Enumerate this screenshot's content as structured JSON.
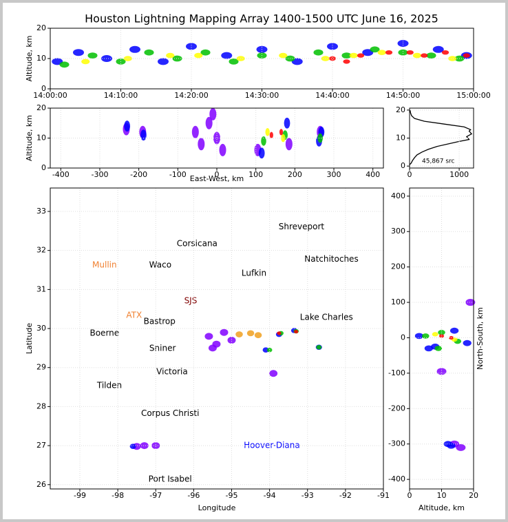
{
  "chart_data": [
    {
      "type": "scatter",
      "title": "Houston Lightning Mapping Array 1400-1500 UTC June 16, 2025",
      "ylabel": "Altitude, km",
      "xlim": [
        0,
        60
      ],
      "ylim": [
        0,
        20
      ],
      "xticks": [
        {
          "value": 0,
          "label": "14:00:00"
        },
        {
          "value": 10,
          "label": "14:10:00"
        },
        {
          "value": 20,
          "label": "14:20:00"
        },
        {
          "value": 30,
          "label": "14:30:00"
        },
        {
          "value": 40,
          "label": "14:40:00"
        },
        {
          "value": 50,
          "label": "14:50:00"
        },
        {
          "value": 60,
          "label": "15:00:00"
        }
      ],
      "yticks": [
        0,
        10,
        20
      ],
      "grid": true,
      "series": [
        {
          "color": "#0000ff",
          "x": [
            1,
            4,
            8,
            12,
            16,
            20,
            25,
            30,
            35,
            40,
            45,
            50,
            55,
            59
          ],
          "y": [
            9,
            12,
            10,
            13,
            9,
            14,
            11,
            13,
            9,
            14,
            12,
            15,
            13,
            11
          ]
        },
        {
          "color": "#00c000",
          "x": [
            2,
            6,
            10,
            14,
            18,
            22,
            26,
            30,
            34,
            38,
            42,
            46,
            50,
            54,
            58
          ],
          "y": [
            8,
            11,
            9,
            12,
            10,
            12,
            9,
            11,
            10,
            12,
            11,
            13,
            12,
            11,
            10
          ]
        },
        {
          "color": "#ffff00",
          "x": [
            5,
            11,
            17,
            21,
            27,
            33,
            39,
            43,
            47,
            52,
            57
          ],
          "y": [
            9,
            10,
            11,
            11,
            10,
            11,
            10,
            11,
            12,
            11,
            10
          ]
        },
        {
          "color": "#ff0000",
          "x": [
            40,
            42,
            44,
            48,
            51,
            53,
            56,
            59
          ],
          "y": [
            10,
            9,
            11,
            12,
            12,
            11,
            12,
            11
          ]
        }
      ]
    },
    {
      "type": "scatter",
      "xlabel": "East-West, km",
      "ylabel": "Altitude, km",
      "xlim": [
        -427,
        427
      ],
      "ylim": [
        0,
        20
      ],
      "xticks": [
        -400,
        -300,
        -200,
        -100,
        0,
        100,
        200,
        300,
        400
      ],
      "yticks": [
        0,
        10,
        20
      ],
      "grid": true,
      "series": [
        {
          "color": "#8000ff",
          "x": [
            -232,
            -190,
            -40,
            -20,
            0,
            -55,
            -10,
            15,
            105,
            185,
            265
          ],
          "y": [
            13,
            12,
            8,
            15,
            10,
            12,
            18,
            6,
            6,
            8,
            12
          ]
        },
        {
          "color": "#0000ff",
          "x": [
            -230,
            -188,
            115,
            180,
            262,
            268
          ],
          "y": [
            14,
            11,
            5,
            15,
            9,
            12
          ]
        },
        {
          "color": "#00c000",
          "x": [
            120,
            175,
            265
          ],
          "y": [
            9,
            11,
            10
          ]
        },
        {
          "color": "#ffff00",
          "x": [
            130,
            170
          ],
          "y": [
            12,
            10
          ]
        },
        {
          "color": "#ff0000",
          "x": [
            140,
            165
          ],
          "y": [
            11,
            12
          ]
        },
        {
          "color": "#ffffff",
          "x": [
            155
          ],
          "y": [
            11
          ]
        }
      ]
    },
    {
      "type": "line",
      "annotation": "45,867 src",
      "xlim": [
        0,
        1290
      ],
      "ylim": [
        -0.7,
        20.7
      ],
      "xticks": [
        0,
        1000
      ],
      "yticks": [
        0,
        10,
        20
      ],
      "grid": true,
      "color": "#000000",
      "x": [
        0,
        30,
        60,
        100,
        150,
        250,
        380,
        550,
        800,
        1000,
        1200,
        1150,
        1250,
        1200,
        1230,
        1100,
        700,
        300,
        100,
        40,
        20,
        10
      ],
      "values": [
        0.5,
        1,
        2,
        3,
        4,
        5,
        6,
        7,
        8,
        8.8,
        9.5,
        10.5,
        11.5,
        12.5,
        13,
        14,
        15,
        16,
        17,
        18,
        19,
        20
      ]
    },
    {
      "type": "map",
      "xlabel": "Longitude",
      "ylabel": "Latitude",
      "xlim": [
        -99.78,
        -91
      ],
      "ylim": [
        25.89,
        33.6
      ],
      "xticks": [
        -99,
        -98,
        -97,
        -96,
        -95,
        -94,
        -93,
        -92,
        -91
      ],
      "yticks": [
        26,
        27,
        28,
        29,
        30,
        31,
        32,
        33
      ],
      "grid": true,
      "places": [
        {
          "label": "Shreveport",
          "lon": -93.16,
          "lat": 32.6,
          "color": "#000000"
        },
        {
          "label": "Corsicana",
          "lon": -95.91,
          "lat": 32.17,
          "color": "#000000"
        },
        {
          "label": "Mullin",
          "lon": -98.35,
          "lat": 31.62,
          "color": "#f08030"
        },
        {
          "label": "Waco",
          "lon": -96.88,
          "lat": 31.62,
          "color": "#000000"
        },
        {
          "label": "Lufkin",
          "lon": -94.41,
          "lat": 31.41,
          "color": "#000000"
        },
        {
          "label": "Natchitoches",
          "lon": -92.37,
          "lat": 31.77,
          "color": "#000000"
        },
        {
          "label": "SJS",
          "lon": -96.08,
          "lat": 30.71,
          "color": "#800000"
        },
        {
          "label": "ATX",
          "lon": -97.57,
          "lat": 30.34,
          "color": "#f08030"
        },
        {
          "label": "Bastrop",
          "lon": -96.9,
          "lat": 30.18,
          "color": "#000000"
        },
        {
          "label": "Lake Charles",
          "lon": -92.5,
          "lat": 30.28,
          "color": "#000000"
        },
        {
          "label": "Boerne",
          "lon": -98.35,
          "lat": 29.88,
          "color": "#000000"
        },
        {
          "label": "Sniner",
          "lon": -96.82,
          "lat": 29.49,
          "color": "#000000"
        },
        {
          "label": "Victoria",
          "lon": -96.57,
          "lat": 28.89,
          "color": "#000000"
        },
        {
          "label": "Tilden",
          "lon": -98.22,
          "lat": 28.54,
          "color": "#000000"
        },
        {
          "label": "Corpus Christi",
          "lon": -96.62,
          "lat": 27.82,
          "color": "#000000"
        },
        {
          "label": "Hoover-Diana",
          "lon": -93.94,
          "lat": 27.0,
          "color": "#0000ff"
        },
        {
          "label": "Port Isabel",
          "lon": -96.62,
          "lat": 26.14,
          "color": "#000000"
        }
      ],
      "series": [
        {
          "color": "#8000ff",
          "x": [
            -95.6,
            -95.4,
            -95.2,
            -95.0,
            -95.5,
            -93.9,
            -97.5,
            -97.3,
            -97.0
          ],
          "y": [
            29.8,
            29.6,
            29.9,
            29.7,
            29.5,
            28.85,
            26.98,
            27.0,
            27.0
          ]
        },
        {
          "color": "#f0a020",
          "x": [
            -94.8,
            -94.5,
            -94.3
          ],
          "y": [
            29.85,
            29.88,
            29.83
          ]
        },
        {
          "color": "#0000ff",
          "x": [
            -93.75,
            -93.35,
            -94.1,
            -92.7,
            -97.6
          ],
          "y": [
            29.85,
            29.95,
            29.45,
            29.52,
            26.98
          ]
        },
        {
          "color": "#00c000",
          "x": [
            -93.7,
            -93.3,
            -94.0,
            -92.7
          ],
          "y": [
            29.88,
            29.93,
            29.45,
            29.52
          ]
        },
        {
          "color": "#ff0000",
          "x": [
            -93.75,
            -93.3
          ],
          "y": [
            29.88,
            29.92
          ]
        }
      ]
    },
    {
      "type": "scatter",
      "xlabel": "Altitude, km",
      "ylabel": "North-South, km",
      "xlim": [
        0,
        20
      ],
      "ylim": [
        -427,
        423
      ],
      "xticks": [
        0,
        10,
        20
      ],
      "yticks": [
        -400,
        -300,
        -200,
        -100,
        0,
        100,
        200,
        300,
        400
      ],
      "grid": true,
      "series": [
        {
          "color": "#8000ff",
          "x": [
            10,
            14,
            16,
            19
          ],
          "y": [
            -95,
            -300,
            -310,
            100
          ]
        },
        {
          "color": "#0000ff",
          "x": [
            3,
            8,
            14,
            18,
            6,
            12,
            13
          ],
          "y": [
            5,
            -25,
            20,
            -15,
            -30,
            -300,
            -305
          ]
        },
        {
          "color": "#00c000",
          "x": [
            5,
            10,
            15,
            9
          ],
          "y": [
            5,
            15,
            -10,
            -30
          ]
        },
        {
          "color": "#ffff00",
          "x": [
            8,
            14
          ],
          "y": [
            10,
            -5
          ]
        },
        {
          "color": "#ff0000",
          "x": [
            10,
            13
          ],
          "y": [
            5,
            0
          ]
        },
        {
          "color": "#ffffff",
          "x": [
            12
          ],
          "y": [
            3
          ]
        }
      ]
    }
  ]
}
